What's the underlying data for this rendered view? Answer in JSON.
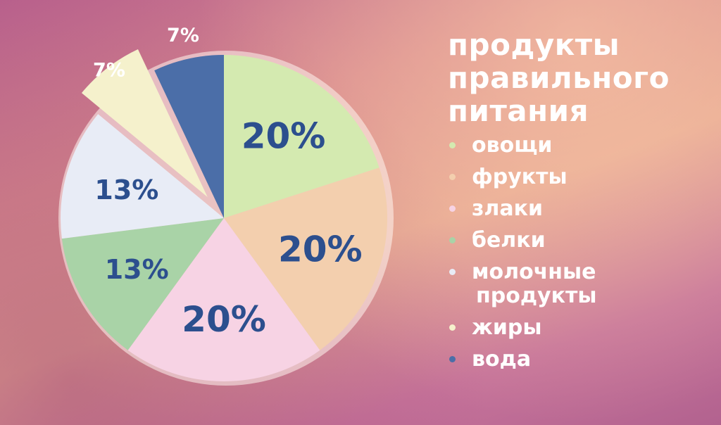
{
  "title_lines": [
    "продукты",
    "правильного",
    "питания"
  ],
  "chart_data": {
    "type": "pie",
    "title": "продукты правильного питания",
    "slices": [
      {
        "label": "овощи",
        "label_lines": [
          "овощи"
        ],
        "value": 20,
        "value_label": "20%",
        "color": "#d4eab0",
        "exploded": false
      },
      {
        "label": "фрукты",
        "label_lines": [
          "фрукты"
        ],
        "value": 20,
        "value_label": "20%",
        "color": "#f3cfae",
        "exploded": false
      },
      {
        "label": "злаки",
        "label_lines": [
          "злаки"
        ],
        "value": 20,
        "value_label": "20%",
        "color": "#f7d3e4",
        "exploded": false
      },
      {
        "label": "белки",
        "label_lines": [
          "белки"
        ],
        "value": 13,
        "value_label": "13%",
        "color": "#a9d3a7",
        "exploded": false
      },
      {
        "label": "молочные продукты",
        "label_lines": [
          "молочные",
          "продукты"
        ],
        "value": 13,
        "value_label": "13%",
        "color": "#e8ecf6",
        "exploded": false
      },
      {
        "label": "жиры",
        "label_lines": [
          "жиры"
        ],
        "value": 7,
        "value_label": "7%",
        "color": "#f5f1cc",
        "exploded": true
      },
      {
        "label": "вода",
        "label_lines": [
          "вода"
        ],
        "value": 7,
        "value_label": "7%",
        "color": "#4b6ea8",
        "exploded": false
      }
    ],
    "legend_position": "right",
    "label_color": "#2c4f8e",
    "outer_label_color": "#ffffff"
  }
}
